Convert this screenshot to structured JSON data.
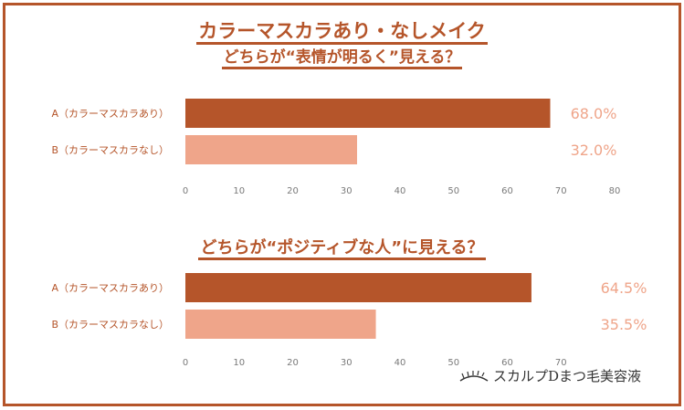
{
  "chart_data": [
    {
      "type": "bar",
      "title_line1": "カラーマスカラあり・なしメイク",
      "title_line2": "どちらが“表情が明るく”見える？",
      "categories": [
        "A（カラーマスカラあり）",
        "B（カラーマスカラなし）"
      ],
      "values": [
        68.0,
        32.0
      ],
      "value_labels": [
        "68.0%",
        "32.0%"
      ],
      "xlim": [
        0,
        80
      ],
      "ticks": [
        "0",
        "10",
        "20",
        "30",
        "40",
        "50",
        "60",
        "70",
        "80"
      ],
      "colors": [
        "#b5552a",
        "#efa58a"
      ],
      "grid": false
    },
    {
      "type": "bar",
      "title": "どちらが“ポジティブな人”に見える？",
      "categories": [
        "A（カラーマスカラあり）",
        "B（カラーマスカラなし）"
      ],
      "values": [
        64.5,
        35.5
      ],
      "value_labels": [
        "64.5%",
        "35.5%"
      ],
      "xlim": [
        0,
        70
      ],
      "ticks": [
        "0",
        "10",
        "20",
        "30",
        "40",
        "50",
        "60",
        "70"
      ],
      "colors": [
        "#b5552a",
        "#efa58a"
      ],
      "grid": false
    }
  ],
  "brand": {
    "name": "スカルプDまつ毛美容液",
    "icon": "eyelash-icon"
  }
}
